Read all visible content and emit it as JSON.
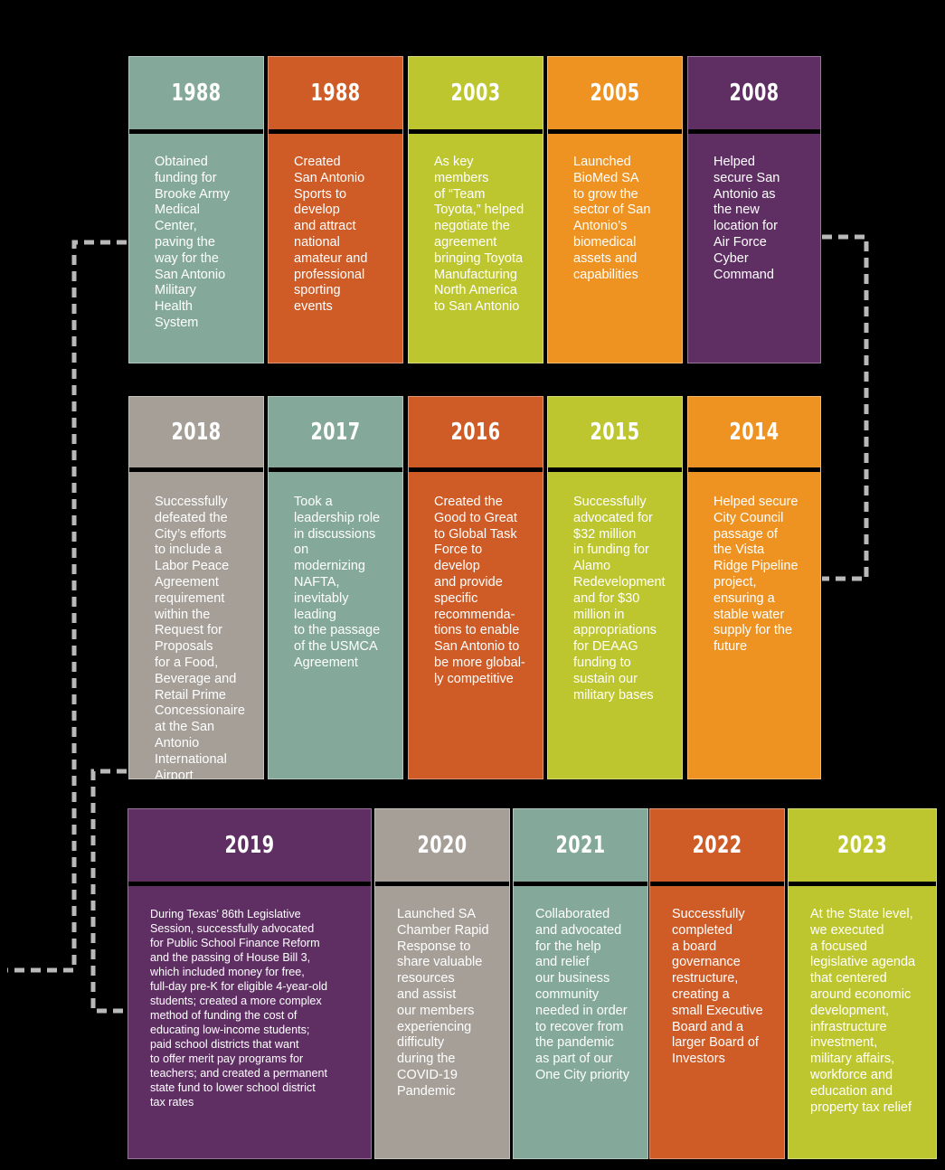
{
  "colors": {
    "teal": "#84a99a",
    "rust": "#cf5b26",
    "lime": "#bec62f",
    "orange": "#ee9322",
    "purple": "#5f2f64",
    "gray": "#a59f98",
    "background": "#000000",
    "connector": "#b9b9b9"
  },
  "timeline": {
    "row1": [
      {
        "year": "1988",
        "color": "teal",
        "text": "Obtained\nfunding for\nBrooke Army\nMedical\nCenter,\npaving the\nway for the\nSan Antonio\nMilitary\nHealth\nSystem"
      },
      {
        "year": "1988",
        "color": "rust",
        "text": "Created\nSan Antonio\nSports to\ndevelop\nand attract\nnational\namateur and\nprofessional\nsporting\nevents"
      },
      {
        "year": "2003",
        "color": "lime",
        "text": "As key\nmembers\nof “Team\nToyota,” helped\nnegotiate the\nagreement\nbringing Toyota\nManufacturing\nNorth America\nto San Antonio"
      },
      {
        "year": "2005",
        "color": "orange",
        "text": "Launched\nBioMed SA\nto grow the\nsector of San\nAntonio’s\nbiomedical\nassets and\ncapabilities"
      },
      {
        "year": "2008",
        "color": "purple",
        "text": "Helped\nsecure San\nAntonio as\nthe new\nlocation for\nAir Force\nCyber\nCommand"
      }
    ],
    "row2": [
      {
        "year": "2018",
        "color": "gray",
        "text": "Successfully\ndefeated the\nCity’s efforts\nto include a\nLabor Peace\nAgreement\nrequirement\nwithin the\nRequest for\nProposals\nfor a Food,\nBeverage and\nRetail Prime\nConcessionaire\nat the San\nAntonio\nInternational\nAirport"
      },
      {
        "year": "2017",
        "color": "teal",
        "text": "Took a\nleadership role\nin discussions\non\nmodernizing\nNAFTA,\ninevitably\nleading\nto the passage\nof the USMCA\nAgreement"
      },
      {
        "year": "2016",
        "color": "rust",
        "text": "Created the\nGood to Great\nto Global Task\nForce to\ndevelop\nand provide\nspecific\nrecommenda-\ntions to enable\nSan Antonio to\nbe more global-\nly competitive"
      },
      {
        "year": "2015",
        "color": "lime",
        "text": "Successfully\nadvocated for\n$32 million\nin funding for\nAlamo\nRedevelopment\nand for $30\nmillion in\nappropriations\nfor DEAAG\nfunding to\nsustain our\nmilitary bases"
      },
      {
        "year": "2014",
        "color": "orange",
        "text": "Helped secure\nCity Council\npassage of\nthe Vista\nRidge Pipeline\nproject,\nensuring a\nstable water\nsupply for the\nfuture"
      }
    ],
    "row3": [
      {
        "year": "2019",
        "color": "purple",
        "text": "During Texas’ 86th Legislative\nSession, successfully advocated\nfor Public School Finance Reform\nand the passing of House Bill 3,\nwhich included money for free,\nfull-day pre-K for eligible 4-year-old\nstudents; created a more complex\nmethod of funding the cost of\neducating low-income students;\npaid school districts that want\nto offer merit pay programs for\nteachers; and created a permanent\nstate fund to lower school district\ntax rates"
      },
      {
        "year": "2020",
        "color": "gray",
        "text": "Launched SA\nChamber Rapid\nResponse to\nshare valuable\nresources\nand assist\nour members\nexperiencing\ndifficulty\nduring the\nCOVID-19\nPandemic"
      },
      {
        "year": "2021",
        "color": "teal",
        "text": "Collaborated\nand advocated\nfor the help\nand relief\nour business\ncommunity\nneeded in order\nto recover from\nthe pandemic\nas part of our\nOne City priority"
      },
      {
        "year": "2022",
        "color": "rust",
        "text": "Successfully\ncompleted\na board\ngovernance\nrestructure,\ncreating a\nsmall Executive\nBoard and a\nlarger Board of\nInvestors"
      },
      {
        "year": "2023",
        "color": "lime",
        "text": "At the State level,\nwe executed\na focused\nlegislative agenda\nthat centered\naround economic\ndevelopment,\ninfrastructure\ninvestment,\nmilitary affairs,\nworkforce and\neducation and\nproperty tax relief"
      }
    ]
  }
}
